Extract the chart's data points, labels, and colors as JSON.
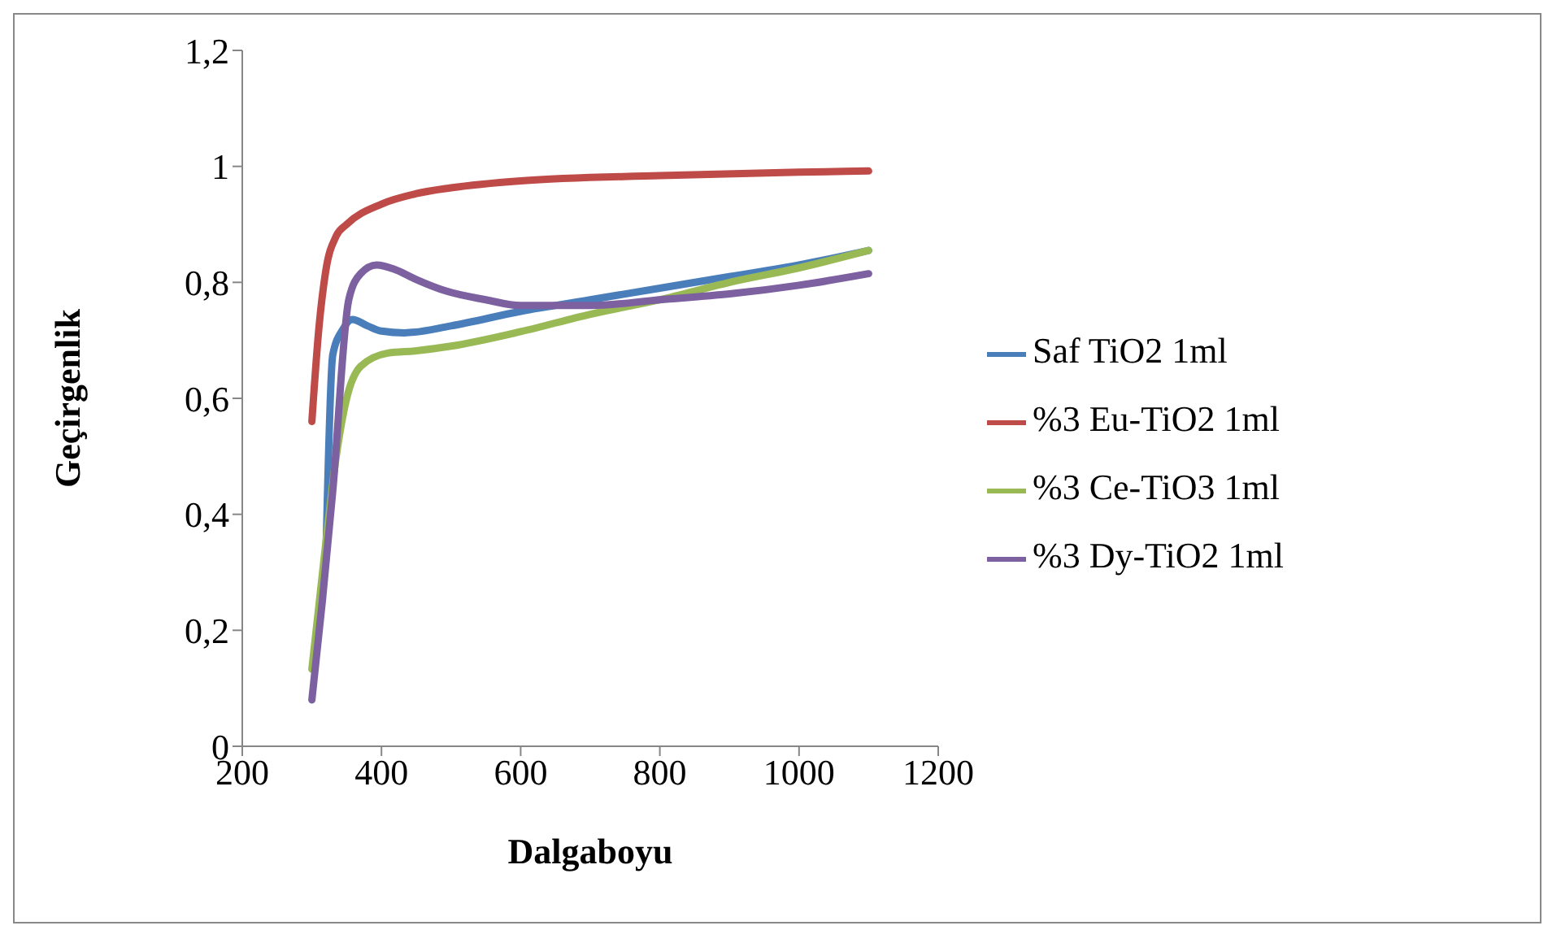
{
  "chart_data": {
    "type": "line",
    "xlabel": "Dalgaboyu",
    "ylabel": "Geçirgenlik",
    "xlim": [
      200,
      1200
    ],
    "xticks": [
      200,
      400,
      600,
      800,
      1000,
      1200
    ],
    "ylim": [
      0,
      1.2
    ],
    "yticks": [
      0,
      {
        "value": 0.2,
        "label": "0,2"
      },
      {
        "value": 0.4,
        "label": "0,4"
      },
      {
        "value": 0.6,
        "label": "0,6"
      },
      {
        "value": 0.8,
        "label": "0,8"
      },
      1,
      {
        "value": 1.2,
        "label": "1,2"
      }
    ],
    "grid": false,
    "legend": "right",
    "marker": "none",
    "line_style": "solid",
    "series": [
      {
        "name": "Saf TiO2 1ml",
        "color": "#4a7ebb",
        "x": [
          320,
          330,
          345,
          358,
          380,
          400,
          433,
          500,
          600,
          700,
          800,
          900,
          1000,
          1100
        ],
        "values": [
          0.32,
          0.675,
          0.72,
          0.736,
          0.725,
          0.716,
          0.713,
          0.725,
          0.75,
          0.77,
          0.79,
          0.81,
          0.83,
          0.855
        ]
      },
      {
        "name": "%3 Eu-TiO2 1ml",
        "color": "#be4b48",
        "x": [
          300,
          310,
          320,
          335,
          350,
          400,
          450,
          500,
          600,
          800,
          1000,
          1100
        ],
        "values": [
          0.56,
          0.72,
          0.82,
          0.88,
          0.9,
          0.935,
          0.953,
          0.963,
          0.975,
          0.984,
          0.99,
          0.992
        ]
      },
      {
        "name": "%3 Ce-TiO3 1ml",
        "color": "#98b954",
        "x": [
          300,
          320,
          335,
          350,
          370,
          409,
          450,
          500,
          600,
          700,
          800,
          900,
          1000,
          1100
        ],
        "values": [
          0.133,
          0.35,
          0.5,
          0.6,
          0.655,
          0.678,
          0.682,
          0.69,
          0.715,
          0.745,
          0.77,
          0.8,
          0.825,
          0.855
        ]
      },
      {
        "name": "%3 Dy-TiO2 1ml",
        "color": "#7d60a0",
        "x": [
          300,
          315,
          330,
          353,
          370,
          393,
          420,
          450,
          493,
          550,
          600,
          700,
          800,
          900,
          1000,
          1100
        ],
        "values": [
          0.08,
          0.25,
          0.44,
          0.77,
          0.815,
          0.83,
          0.822,
          0.805,
          0.785,
          0.77,
          0.76,
          0.76,
          0.77,
          0.78,
          0.795,
          0.815
        ]
      }
    ]
  }
}
